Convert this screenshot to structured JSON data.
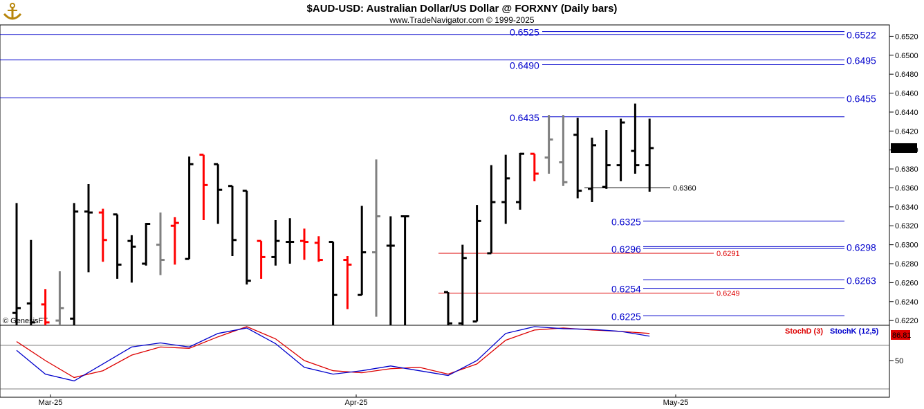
{
  "header": {
    "title": "$AUD-USD:  Australian Dollar/US Dollar @ FORXNY  (Daily bars)",
    "subtitle": "www.TradeNavigator.com © 1999-2025"
  },
  "watermark": "© GenesisFT",
  "logo_icon": "anchor-logo-icon",
  "colors": {
    "bar_up": "#000000",
    "bar_down": "#ff0000",
    "bar_neutral": "#808080",
    "level_blue": "#0000cc",
    "level_red": "#dd0000",
    "stoch_d": "#dd0000",
    "stoch_k": "#0000cc",
    "last_bg": "#000000"
  },
  "chart_data": [
    {
      "type": "ohlc",
      "title": "$AUD-USD:  Australian Dollar/US Dollar @ FORXNY  (Daily bars)",
      "ylim": [
        0.6215,
        0.6532
      ],
      "y_ticks": [
        "0.6220",
        "0.6240",
        "0.6260",
        "0.6280",
        "0.6300",
        "0.6320",
        "0.6340",
        "0.6360",
        "0.6380",
        "0.6400",
        "0.6420",
        "0.6440",
        "0.6460",
        "0.6480",
        "0.6500",
        "0.6520"
      ],
      "x_ticks": [
        "Mar-25",
        "Apr-25",
        "May-25"
      ],
      "last_price": "0.6402",
      "bars": [
        {
          "x": 0,
          "o": 0.6228,
          "h": 0.6344,
          "l": 0.6215,
          "c": 0.6233,
          "col": "k"
        },
        {
          "x": 1,
          "o": 0.6238,
          "h": 0.6305,
          "l": 0.6215,
          "c": 0.6218,
          "col": "k"
        },
        {
          "x": 2,
          "o": 0.6237,
          "h": 0.6253,
          "l": 0.6215,
          "c": 0.6218,
          "col": "r"
        },
        {
          "x": 3,
          "o": 0.622,
          "h": 0.6272,
          "l": 0.6215,
          "c": 0.6233,
          "col": "g"
        },
        {
          "x": 4,
          "o": 0.6222,
          "h": 0.6344,
          "l": 0.6215,
          "c": 0.6335,
          "col": "k"
        },
        {
          "x": 5,
          "o": 0.6335,
          "h": 0.6364,
          "l": 0.6271,
          "c": 0.6334,
          "col": "k"
        },
        {
          "x": 6,
          "o": 0.6334,
          "h": 0.6338,
          "l": 0.6282,
          "c": 0.6305,
          "col": "r"
        },
        {
          "x": 7,
          "o": 0.6332,
          "h": 0.6332,
          "l": 0.6264,
          "c": 0.6279,
          "col": "k"
        },
        {
          "x": 8,
          "o": 0.6304,
          "h": 0.631,
          "l": 0.626,
          "c": 0.6298,
          "col": "k"
        },
        {
          "x": 9,
          "o": 0.628,
          "h": 0.6323,
          "l": 0.6278,
          "c": 0.6322,
          "col": "k"
        },
        {
          "x": 10,
          "o": 0.63,
          "h": 0.6334,
          "l": 0.6268,
          "c": 0.6284,
          "col": "g"
        },
        {
          "x": 11,
          "o": 0.632,
          "h": 0.6329,
          "l": 0.6279,
          "c": 0.6323,
          "col": "r"
        },
        {
          "x": 12,
          "o": 0.6285,
          "h": 0.6393,
          "l": 0.6285,
          "c": 0.6385,
          "col": "k"
        },
        {
          "x": 13,
          "o": 0.6395,
          "h": 0.6395,
          "l": 0.6326,
          "c": 0.6363,
          "col": "r"
        },
        {
          "x": 14,
          "o": 0.6385,
          "h": 0.6385,
          "l": 0.6322,
          "c": 0.6358,
          "col": "k"
        },
        {
          "x": 15,
          "o": 0.6362,
          "h": 0.6362,
          "l": 0.6288,
          "c": 0.6305,
          "col": "k"
        },
        {
          "x": 16,
          "o": 0.6357,
          "h": 0.6357,
          "l": 0.6258,
          "c": 0.6262,
          "col": "k"
        },
        {
          "x": 17,
          "o": 0.6304,
          "h": 0.6304,
          "l": 0.6264,
          "c": 0.6287,
          "col": "r"
        },
        {
          "x": 18,
          "o": 0.6287,
          "h": 0.6326,
          "l": 0.6278,
          "c": 0.6304,
          "col": "k"
        },
        {
          "x": 19,
          "o": 0.6303,
          "h": 0.6328,
          "l": 0.628,
          "c": 0.6303,
          "col": "k"
        },
        {
          "x": 20,
          "o": 0.6304,
          "h": 0.6317,
          "l": 0.6284,
          "c": 0.6303,
          "col": "r"
        },
        {
          "x": 21,
          "o": 0.6302,
          "h": 0.6309,
          "l": 0.6282,
          "c": 0.6284,
          "col": "r"
        },
        {
          "x": 22,
          "o": 0.6303,
          "h": 0.6303,
          "l": 0.6215,
          "c": 0.6247,
          "col": "k"
        },
        {
          "x": 23,
          "o": 0.6284,
          "h": 0.6288,
          "l": 0.6232,
          "c": 0.6279,
          "col": "r"
        },
        {
          "x": 24,
          "o": 0.6247,
          "h": 0.6341,
          "l": 0.6247,
          "c": 0.6292,
          "col": "k"
        },
        {
          "x": 25,
          "o": 0.6292,
          "h": 0.639,
          "l": 0.6224,
          "c": 0.633,
          "col": "n"
        },
        {
          "x": 26,
          "o": 0.6299,
          "h": 0.633,
          "l": 0.6215,
          "c": 0.6299,
          "col": "k"
        },
        {
          "x": 27,
          "o": 0.633,
          "h": 0.633,
          "l": 0.6215,
          "c": 0.633,
          "col": "k"
        },
        {
          "x": 30,
          "o": 0.625,
          "h": 0.625,
          "l": 0.6215,
          "c": 0.6217,
          "col": "k"
        },
        {
          "x": 31,
          "o": 0.6217,
          "h": 0.63,
          "l": 0.6215,
          "c": 0.6286,
          "col": "k"
        },
        {
          "x": 32,
          "o": 0.6219,
          "h": 0.6342,
          "l": 0.6219,
          "c": 0.6325,
          "col": "k"
        },
        {
          "x": 33,
          "o": 0.6291,
          "h": 0.6384,
          "l": 0.6291,
          "c": 0.6345,
          "col": "k"
        },
        {
          "x": 34,
          "o": 0.6345,
          "h": 0.6395,
          "l": 0.6322,
          "c": 0.637,
          "col": "k"
        },
        {
          "x": 35,
          "o": 0.6345,
          "h": 0.6397,
          "l": 0.6337,
          "c": 0.6396,
          "col": "k"
        },
        {
          "x": 36,
          "o": 0.6396,
          "h": 0.6396,
          "l": 0.6367,
          "c": 0.6375,
          "col": "r"
        },
        {
          "x": 37,
          "o": 0.6392,
          "h": 0.6437,
          "l": 0.6375,
          "c": 0.6411,
          "col": "g"
        },
        {
          "x": 38,
          "o": 0.6387,
          "h": 0.6437,
          "l": 0.6362,
          "c": 0.6366,
          "col": "n"
        },
        {
          "x": 39,
          "o": 0.6416,
          "h": 0.6434,
          "l": 0.6349,
          "c": 0.6357,
          "col": "k"
        },
        {
          "x": 40,
          "o": 0.6359,
          "h": 0.6413,
          "l": 0.6345,
          "c": 0.6405,
          "col": "k"
        },
        {
          "x": 41,
          "o": 0.6361,
          "h": 0.6421,
          "l": 0.6359,
          "c": 0.6384,
          "col": "k"
        },
        {
          "x": 42,
          "o": 0.6384,
          "h": 0.6433,
          "l": 0.6367,
          "c": 0.6429,
          "col": "k"
        },
        {
          "x": 43,
          "o": 0.6399,
          "h": 0.6449,
          "l": 0.6375,
          "c": 0.6384,
          "col": "k"
        },
        {
          "x": 44,
          "o": 0.6384,
          "h": 0.6433,
          "l": 0.6356,
          "c": 0.6402,
          "col": "k"
        }
      ],
      "levels_blue_right": [
        {
          "label": "0.6522",
          "value": 0.6522
        },
        {
          "label": "0.6495",
          "value": 0.6495
        },
        {
          "label": "0.6455",
          "value": 0.6455
        },
        {
          "label": "0.6298",
          "value": 0.6298
        },
        {
          "label": "0.6263",
          "value": 0.6263
        }
      ],
      "levels_blue_mid": [
        {
          "label": "0.6525",
          "value": 0.6525
        },
        {
          "label": "0.6490",
          "value": 0.649
        },
        {
          "label": "0.6435",
          "value": 0.6435
        },
        {
          "label": "0.6325",
          "value": 0.6325
        },
        {
          "label": "0.6296",
          "value": 0.6296
        },
        {
          "label": "0.6254",
          "value": 0.6254
        },
        {
          "label": "0.6225",
          "value": 0.6225
        }
      ],
      "levels_red": [
        {
          "label": "0.6291",
          "value": 0.6291
        },
        {
          "label": "0.6249",
          "value": 0.6249
        }
      ],
      "level_black": {
        "label": "0.6360",
        "value": 0.636
      }
    },
    {
      "type": "line",
      "legend": [
        "StochD (3)",
        "StochK (12,5)"
      ],
      "y_tick": "50",
      "last_value": "86.81",
      "ylim": [
        0,
        100
      ],
      "x": [
        0,
        2,
        4,
        6,
        8,
        10,
        12,
        14,
        16,
        18,
        20,
        22,
        24,
        26,
        28,
        30,
        32,
        34,
        36,
        38,
        40,
        42,
        44
      ],
      "series": [
        {
          "name": "StochD (3)",
          "values": [
            78,
            50,
            25,
            35,
            58,
            70,
            68,
            85,
            100,
            82,
            50,
            35,
            32,
            38,
            40,
            30,
            45,
            80,
            95,
            98,
            95,
            93,
            90
          ]
        },
        {
          "name": "StochK (12,5)",
          "values": [
            65,
            30,
            20,
            45,
            70,
            76,
            70,
            90,
            98,
            75,
            40,
            30,
            35,
            42,
            35,
            28,
            50,
            90,
            100,
            97,
            96,
            93,
            86
          ]
        }
      ]
    }
  ]
}
